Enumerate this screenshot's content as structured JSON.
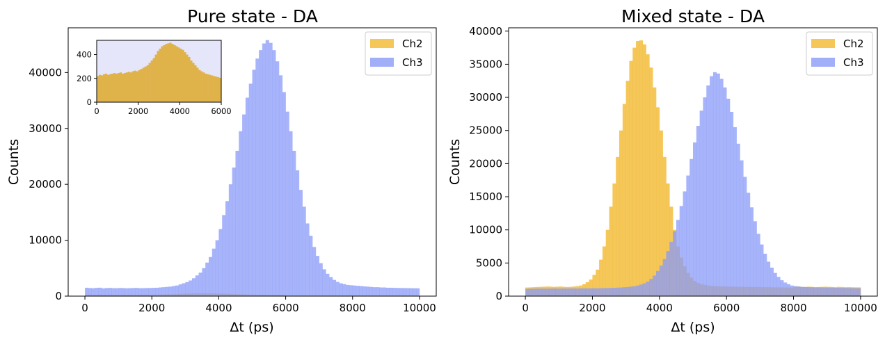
{
  "colors": {
    "ch2": "#f2b92f",
    "ch3": "#8a9bf8",
    "inset_bg": "#e6e6fa"
  },
  "chart_data": [
    {
      "type": "histogram",
      "title": "Pure state - DA",
      "xlabel": "Δt (ps)",
      "ylabel": "Counts",
      "xlim": [
        -500,
        10500
      ],
      "ylim": [
        0,
        48000
      ],
      "xticks": [
        0,
        2000,
        4000,
        6000,
        8000,
        10000
      ],
      "yticks": [
        0,
        10000,
        20000,
        30000,
        40000
      ],
      "legend_position": "top-right",
      "bin_width": 100,
      "series": [
        {
          "name": "Ch2",
          "color_key": "ch2",
          "x_start": 0,
          "counts": [
            220,
            230,
            225,
            235,
            240,
            230,
            235,
            240,
            245,
            240,
            245,
            250,
            240,
            245,
            250,
            255,
            250,
            260,
            265,
            260,
            270,
            280,
            290,
            300,
            310,
            330,
            350,
            370,
            400,
            430,
            450,
            470,
            480,
            490,
            495,
            500,
            490,
            480,
            470,
            460,
            450,
            440,
            420,
            400,
            380,
            350,
            330,
            310,
            290,
            270,
            260,
            250,
            240,
            235,
            230,
            225,
            220,
            215,
            210,
            205
          ]
        },
        {
          "name": "Ch3",
          "color_key": "ch3",
          "x_start": 0,
          "counts": [
            1500,
            1450,
            1420,
            1480,
            1510,
            1400,
            1450,
            1470,
            1430,
            1420,
            1460,
            1440,
            1410,
            1430,
            1450,
            1470,
            1420,
            1430,
            1450,
            1460,
            1480,
            1500,
            1550,
            1600,
            1650,
            1700,
            1800,
            1900,
            2100,
            2300,
            2500,
            2800,
            3200,
            3700,
            4200,
            5000,
            6000,
            7000,
            8500,
            10000,
            12000,
            14500,
            17000,
            20000,
            23000,
            26000,
            29500,
            32500,
            35500,
            38000,
            40500,
            42500,
            44000,
            45200,
            45800,
            45300,
            44000,
            42000,
            39500,
            36500,
            33000,
            29500,
            26000,
            22500,
            19000,
            16000,
            13000,
            10800,
            8800,
            7200,
            5900,
            4800,
            4000,
            3400,
            2900,
            2550,
            2300,
            2150,
            2000,
            1950,
            1900,
            1850,
            1800,
            1750,
            1700,
            1650,
            1600,
            1600,
            1550,
            1550,
            1500,
            1500,
            1480,
            1460,
            1450,
            1440,
            1430,
            1420,
            1410,
            1400
          ]
        }
      ],
      "inset": {
        "type": "histogram",
        "xlim": [
          0,
          6000
        ],
        "ylim": [
          0,
          520
        ],
        "xticks": [
          0,
          2000,
          4000,
          6000
        ],
        "yticks": [
          0,
          200,
          400
        ],
        "series_key": "Ch2"
      }
    },
    {
      "type": "histogram",
      "title": "Mixed state - DA",
      "xlabel": "Δt (ps)",
      "ylabel": "Counts",
      "xlim": [
        -500,
        10500
      ],
      "ylim": [
        0,
        40500
      ],
      "xticks": [
        0,
        2000,
        4000,
        6000,
        8000,
        10000
      ],
      "yticks": [
        0,
        5000,
        10000,
        15000,
        20000,
        25000,
        30000,
        35000,
        40000
      ],
      "legend_position": "top-right",
      "bin_width": 100,
      "series": [
        {
          "name": "Ch2",
          "color_key": "ch2",
          "x_start": 0,
          "counts": [
            1300,
            1320,
            1350,
            1380,
            1400,
            1420,
            1450,
            1430,
            1400,
            1420,
            1450,
            1400,
            1380,
            1400,
            1450,
            1500,
            1600,
            1800,
            2100,
            2500,
            3200,
            4000,
            5500,
            7500,
            10000,
            13500,
            17000,
            21000,
            25000,
            29000,
            32500,
            35500,
            37500,
            38500,
            38600,
            38000,
            36500,
            34500,
            31500,
            28500,
            25000,
            21000,
            17000,
            13500,
            10000,
            7500,
            5800,
            4500,
            3500,
            2800,
            2300,
            2000,
            1800,
            1700,
            1600,
            1550,
            1500,
            1480,
            1460,
            1450,
            1440,
            1430,
            1420,
            1410,
            1400,
            1400,
            1390,
            1380,
            1380,
            1370,
            1360,
            1350,
            1350,
            1340,
            1330,
            1330,
            1320,
            1310,
            1300,
            1300,
            1400,
            1450,
            1400,
            1380,
            1420,
            1400,
            1350,
            1380,
            1400,
            1420,
            1400,
            1380,
            1350,
            1400,
            1380,
            1350,
            1360,
            1340,
            1330,
            1320
          ]
        },
        {
          "name": "Ch3",
          "color_key": "ch3",
          "x_start": 0,
          "counts": [
            1100,
            1120,
            1130,
            1140,
            1150,
            1140,
            1130,
            1150,
            1160,
            1140,
            1150,
            1160,
            1150,
            1170,
            1160,
            1150,
            1170,
            1180,
            1170,
            1180,
            1190,
            1180,
            1200,
            1210,
            1220,
            1240,
            1250,
            1280,
            1300,
            1340,
            1380,
            1430,
            1500,
            1600,
            1750,
            1950,
            2200,
            2600,
            3100,
            3800,
            4600,
            5600,
            6800,
            8200,
            9800,
            11500,
            13600,
            15800,
            18200,
            20700,
            23200,
            25700,
            28000,
            30000,
            31800,
            33200,
            33800,
            33600,
            32800,
            31500,
            29800,
            27800,
            25500,
            23000,
            20500,
            18000,
            15600,
            13400,
            11300,
            9400,
            7800,
            6400,
            5200,
            4300,
            3500,
            2900,
            2400,
            2050,
            1800,
            1600,
            1500,
            1450,
            1400,
            1380,
            1360,
            1340,
            1330,
            1320,
            1310,
            1300,
            1290,
            1280,
            1270,
            1260,
            1250,
            1240,
            1230,
            1220,
            1210,
            1200
          ]
        }
      ]
    }
  ]
}
